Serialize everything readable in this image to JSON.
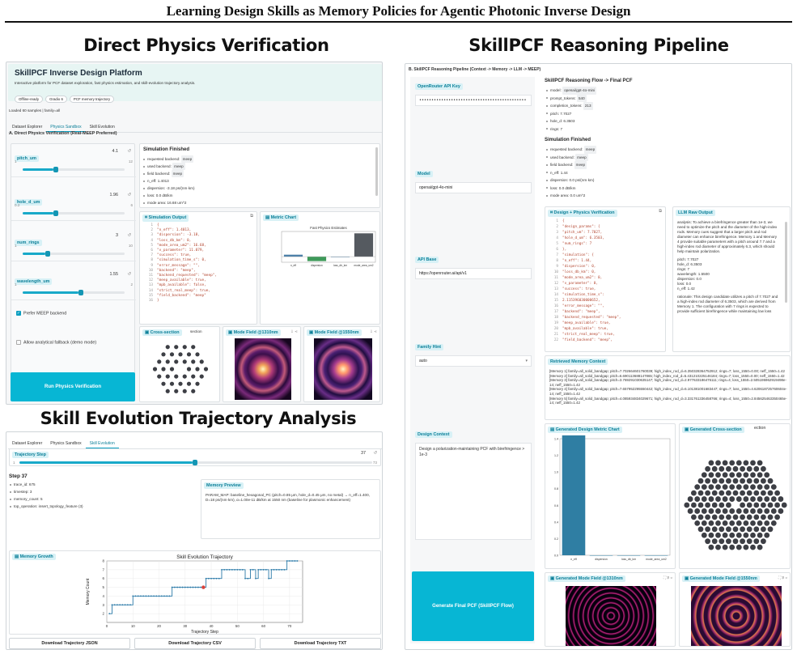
{
  "figure": {
    "title": "Learning Design Skills as Memory Policies for Agentic Photonic Inverse Design"
  },
  "panels": {
    "direct": "Direct Physics Verification",
    "pipeline": "SkillPCF Reasoning Pipeline",
    "skill": "Skill Evolution Trajectory Analysis"
  },
  "platform": {
    "title": "SkillPCF Inverse Design Platform",
    "subtitle": "Interactive platform for PCF dataset exploration, fast physics estimation, and skill-evolution trajectory analysis.",
    "pills": [
      "Offline-ready",
      "Gradio 6",
      "PCF memory trajectory"
    ],
    "loaded": "Loaded 60 samples | family=all",
    "tabs": [
      "Dataset Explorer",
      "Physics Sandbox",
      "Skill Evolution"
    ],
    "section": "A. Direct Physics Verification (Real-MEEP Preferred)",
    "sliders": [
      {
        "name": "pitch_um",
        "value": "4.1",
        "min": "1",
        "max": "12",
        "frac": 0.3
      },
      {
        "name": "hole_d_um",
        "value": "1.96",
        "min": "0.2",
        "max": "6",
        "frac": 0.3
      },
      {
        "name": "num_rings",
        "value": "3",
        "min": "1",
        "max": "10",
        "frac": 0.22
      },
      {
        "name": "wavelength_um",
        "value": "1.55",
        "min": "1",
        "max": "2",
        "frac": 0.55
      }
    ],
    "check_meep": "Prefer MEEP backend",
    "check_fallback": "Allow analytical fallback (demo mode)",
    "run_button": "Run Physics Verification",
    "sim_title": "Simulation Finished",
    "sim_rows": [
      {
        "k": "requested backend:",
        "v": "meep",
        "tag": true
      },
      {
        "k": "used backend:",
        "v": "meep",
        "tag": true
      },
      {
        "k": "field backend:",
        "v": "meep",
        "tag": true
      },
      {
        "k": "n_eff:",
        "v": "1.4013",
        "tag": false
      },
      {
        "k": "dispersion:",
        "v": "-3.18 ps/(nm·km)",
        "tag": false
      },
      {
        "k": "loss:",
        "v": "0.0 dB/km",
        "tag": false
      },
      {
        "k": "mode area:",
        "v": "16.68 um^2",
        "tag": false
      }
    ],
    "sim_output_label": "Simulation Output",
    "sim_output_lines": [
      "{",
      "\"n_eff\": 1.4013,",
      "\"dispersion\": -3.18,",
      "\"loss_db_km\": 0,",
      "\"mode_area_um2\": 16.68,",
      "\"v_parameter\": 11.079,",
      "\"success\": true,",
      "\"simulation_time_s\": 0,",
      "\"error_message\": \"\",",
      "\"backend\": \"meep\",",
      "\"backend_requested\": \"meep\",",
      "\"meep_available\": true,",
      "\"mpb_available\": false,",
      "\"strict_real_meep\": true,",
      "\"field_backend\": \"meep\"",
      "}"
    ],
    "metric_label": "Metric Chart",
    "cross_label": "Cross-section",
    "cross_sub": "section",
    "mode1310": "Mode Field @1310nm",
    "mode1550": "Mode Field @1550nm"
  },
  "chart_data": [
    {
      "type": "bar",
      "title": "Fast Physics Estimates",
      "categories": [
        "n_eff",
        "dispersion",
        "loss_db_km",
        "mode_area_um2"
      ],
      "values": [
        1.4013,
        -3.18,
        0,
        16.68
      ],
      "colors": [
        "#4a7fa8",
        "#3f9a5a",
        "#4a7fa8",
        "#555a60"
      ]
    },
    {
      "type": "line",
      "title": "Skill Evolution Trajectory",
      "xlabel": "Trajectory Step",
      "ylabel": "Memory Count",
      "xlim": [
        0,
        75
      ],
      "ylim": [
        1,
        8
      ],
      "x_ticks": [
        0,
        10,
        20,
        30,
        40,
        50,
        60,
        70
      ],
      "y_ticks": [
        2,
        3,
        4,
        5,
        6,
        7,
        8
      ],
      "x": [
        1,
        2,
        3,
        4,
        5,
        6,
        7,
        8,
        9,
        10,
        11,
        12,
        13,
        14,
        15,
        16,
        17,
        18,
        19,
        20,
        21,
        22,
        23,
        24,
        25,
        26,
        27,
        28,
        29,
        30,
        31,
        32,
        33,
        34,
        35,
        36,
        37,
        38,
        39,
        40,
        41,
        42,
        43,
        44,
        45,
        46,
        47,
        48,
        49,
        50,
        51,
        52,
        53,
        54,
        55,
        56,
        57,
        58,
        59,
        60,
        61,
        62,
        63,
        64,
        65,
        66,
        67,
        68,
        69,
        70,
        71,
        72,
        73
      ],
      "y": [
        2,
        3,
        3,
        3,
        3,
        3,
        3,
        3,
        3,
        4,
        4,
        4,
        4,
        4,
        4,
        4,
        4,
        4,
        4,
        4,
        4,
        4,
        4,
        4,
        5,
        5,
        5,
        5,
        5,
        5,
        5,
        5,
        5,
        5,
        5,
        5,
        5,
        6,
        6,
        6,
        6,
        6,
        6,
        7,
        7,
        7,
        7,
        7,
        7,
        7,
        7,
        7,
        6,
        6,
        7,
        7,
        6,
        7,
        7,
        7,
        7,
        6,
        7,
        7,
        7,
        7,
        7,
        7,
        8,
        8,
        8,
        8,
        8
      ],
      "highlight": {
        "x": 37,
        "y": 5
      }
    },
    {
      "type": "bar",
      "title": "Generated Design Metric Chart",
      "categories": [
        "n_eff",
        "dispersion",
        "loss_db_km",
        "mode_area_um2"
      ],
      "values": [
        1.44,
        0.0,
        0.0,
        0.0
      ],
      "ylim": [
        0,
        1.4
      ],
      "y_ticks": [
        0,
        0.2,
        0.4,
        0.6,
        0.8,
        1.0,
        1.2,
        1.4
      ]
    }
  ],
  "skill": {
    "tabs": [
      "Dataset Explorer",
      "Physics Sandbox",
      "Skill Evolution"
    ],
    "traj_label": "Trajectory Step",
    "traj_value": "37",
    "traj_min": "1",
    "traj_max": "73",
    "traj_frac": 0.49,
    "step_title": "Step 37",
    "rows": [
      {
        "k": "trace_id:",
        "v": "675"
      },
      {
        "k": "timestep:",
        "v": "3"
      },
      {
        "k": "memory_count:",
        "v": "5"
      },
      {
        "k": "top_operation:",
        "v": "insert_topology_feature (3)"
      }
    ],
    "memory_preview_label": "Memory Preview",
    "memory_preview": "PARAM_MAP: baseline_hexagonal_PC (pitch=0.85 μm, hole_d=0.45 μm, no metal) → n_eff=1.400, D=18 ps/(nm·km), α=1.00e-11 dB/km at 1550 nm (baseline for plasmonic enhancement)",
    "memory_growth_label": "Memory Growth",
    "downloads": [
      "Download Trajectory JSON",
      "Download Trajectory CSV",
      "Download Trajectory TXT"
    ]
  },
  "pipeline": {
    "header": "B. SkillPCF Reasoning Pipeline (Context -> Memory -> LLM -> MEEP)",
    "api_key_label": "OpenRouter API Key",
    "api_key_value": "••••••••••••••••••••••••••••••••••••••••••••",
    "model_label": "Model",
    "model_value": "openai/gpt-4o-mini",
    "api_base_label": "API Base",
    "api_base_value": "https://openrouter.ai/api/v1",
    "family_label": "Family Hint",
    "family_value": "auto",
    "design_context_label": "Design Context",
    "design_context_value": "Design a polarization-maintaining PCF with birefringence > 1e-3",
    "generate_button": "Generate Final PCF (SkillPCF Flow)",
    "flow_title": "SkillPCF Reasoning Flow -> Final PCF",
    "flow_rows": [
      {
        "k": "model:",
        "v": "openai/gpt-4o-mini",
        "tag": true
      },
      {
        "k": "prompt_tokens:",
        "v": "540",
        "tag": true
      },
      {
        "k": "completion_tokens:",
        "v": "213",
        "tag": true
      },
      {
        "k": "pitch:",
        "v": "7.7027",
        "tag": false
      },
      {
        "k": "hole_d:",
        "v": "6.3503",
        "tag": false
      },
      {
        "k": "rings:",
        "v": "7",
        "tag": false
      }
    ],
    "sim_title": "Simulation Finished",
    "sim_rows": [
      {
        "k": "requested backend:",
        "v": "meep",
        "tag": true
      },
      {
        "k": "used backend:",
        "v": "meep",
        "tag": true
      },
      {
        "k": "field backend:",
        "v": "meep",
        "tag": true
      },
      {
        "k": "n_eff:",
        "v": "1.44",
        "tag": false
      },
      {
        "k": "dispersion:",
        "v": "0.0 ps/(nm·km)",
        "tag": false
      },
      {
        "k": "loss:",
        "v": "0.0 dB/km",
        "tag": false
      },
      {
        "k": "mode area:",
        "v": "0.0 um^2",
        "tag": false
      }
    ],
    "design_label": "Design + Physics Verification",
    "design_lines": [
      "{",
      "\"design_params\": {",
      "\"pitch_um\": 7.7027,",
      "\"hole_d_um\": 6.3503,",
      "\"num_rings\": 7",
      "},",
      "\"simulation\": {",
      "\"n_eff\": 1.44,",
      "\"dispersion\": 0,",
      "\"loss_db_km\": 0,",
      "\"mode_area_um2\": 0,",
      "\"v_parameter\": 0,",
      "\"success\": true,",
      "\"simulation_time_s\":",
      "2.115396030000652,",
      "\"error_message\": \"\",",
      "\"backend\": \"meep\",",
      "\"backend_requested\": \"meep\",",
      "\"meep_available\": true,",
      "\"mpb_available\": true,",
      "\"strict_real_meep\": true,",
      "\"field_backend\": \"meep\","
    ],
    "llm_label": "LLM Raw Output",
    "llm_text": "analysis: To achieve a birefringence greater than 1e-3, we need to optimize the pitch and the diameter of the high-index rods. Memory cues suggest that a larger pitch and rod diameter can enhance birefringence. Memory 1 and Memory 4 provide suitable parameters with a pitch around 7.7 and a high-index rod diameter of approximately 6.3, which should help maintain polarization.",
    "llm_params": [
      "pitch: 7.7027",
      "hole_d: 6.3503",
      "rings: 7",
      "wavelength: 1.5500",
      "dispersion: 0.0",
      "loss: 0.0",
      "n_eff: 1.42"
    ],
    "llm_tail": "rationale: This design candidate utilizes a pitch of 7.7027 and a high-index rod diameter of 6.3503, which are derived from Memory 1. The configuration with 7 rings is expected to provide sufficient birefringence while maintaining low loss",
    "retrieved_label": "Retrieved Memory Context",
    "retrieved": [
      "[Memory 1] family=all_solid_bandgap; pitch=7.702664601760039; high_index_rod_d=6.350328364752912; rings=7; loss_1550=0.00; neff_1550=1.42",
      "[Memory 2] family=all_solid_bandgap; pitch=6.690113688147865; high_index_rod_d=5.431210225146184; rings=7; loss_1550=0.00; neff_1550=1.42",
      "[Memory 3] family=all_solid_bandgap; pitch=3.769291030635147; high_index_rod_d=2.977633186476111; rings=4; loss_1550=2.505195962919498e-14; neff_1550=1.42",
      "[Memory 4] family=all_solid_bandgap; pitch=7.657952295550442; high_index_rod_d=6.101381001683447; rings=7; loss_1550=4.620618725760604e-14; neff_1550=1.42",
      "[Memory 5] family=all_solid_bandgap; pitch=4.085934834029671; high_index_rod_d=3.331761336458766; rings=4; loss_1550=2.845625463350465e-14; neff_1550=1.42"
    ],
    "gen_metric_label": "Generated Design Metric Chart",
    "gen_cross_label": "Generated Cross-section",
    "gen_cross_sub": "ection",
    "gen_mode1310": "Generated Mode Field @1310nm",
    "gen_mode1550": "Generated Mode Field @1550nm"
  }
}
